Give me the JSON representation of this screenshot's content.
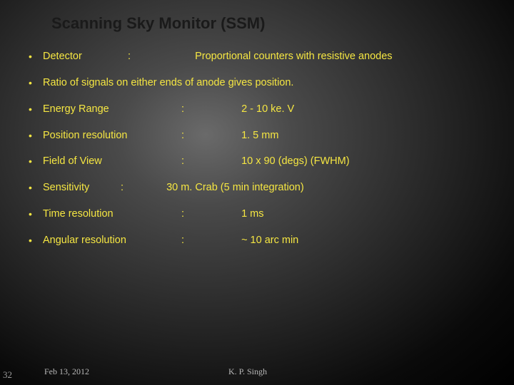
{
  "title": "Scanning Sky Monitor (SSM)",
  "items": [
    {
      "label": "Detector",
      "colon": ":",
      "value": "Proportional counters with resistive anodes",
      "lw": 115,
      "cw": 90,
      "vw": 0
    },
    {
      "label": "Ratio of signals on either ends of anode gives position.",
      "colon": "",
      "value": "",
      "lw": 0,
      "cw": 0,
      "vw": 0
    },
    {
      "label": "Energy Range",
      "colon": ":",
      "value": "2 - 10 ke. V",
      "lw": 190,
      "cw": 80,
      "vw": 0
    },
    {
      "label": "Position resolution",
      "colon": ":",
      "value": "1. 5 mm",
      "lw": 190,
      "cw": 80,
      "vw": 0
    },
    {
      "label": "Field of View",
      "colon": ":",
      "value": "10 x 90 (degs) (FWHM)",
      "lw": 190,
      "cw": 80,
      "vw": 0
    },
    {
      "label": "Sensitivity",
      "colon": ":",
      "value": "30 m. Crab (5 min integration)",
      "lw": 105,
      "cw": 60,
      "vw": 0
    },
    {
      "label": "Time resolution",
      "colon": ":",
      "value": "1 ms",
      "lw": 190,
      "cw": 80,
      "vw": 0
    },
    {
      "label": "Angular resolution",
      "colon": ":",
      "value": "~ 10 arc min",
      "lw": 190,
      "cw": 80,
      "vw": 0
    }
  ],
  "footer": {
    "date": "Feb 13, 2012",
    "author": "K. P. Singh"
  },
  "page": "32"
}
